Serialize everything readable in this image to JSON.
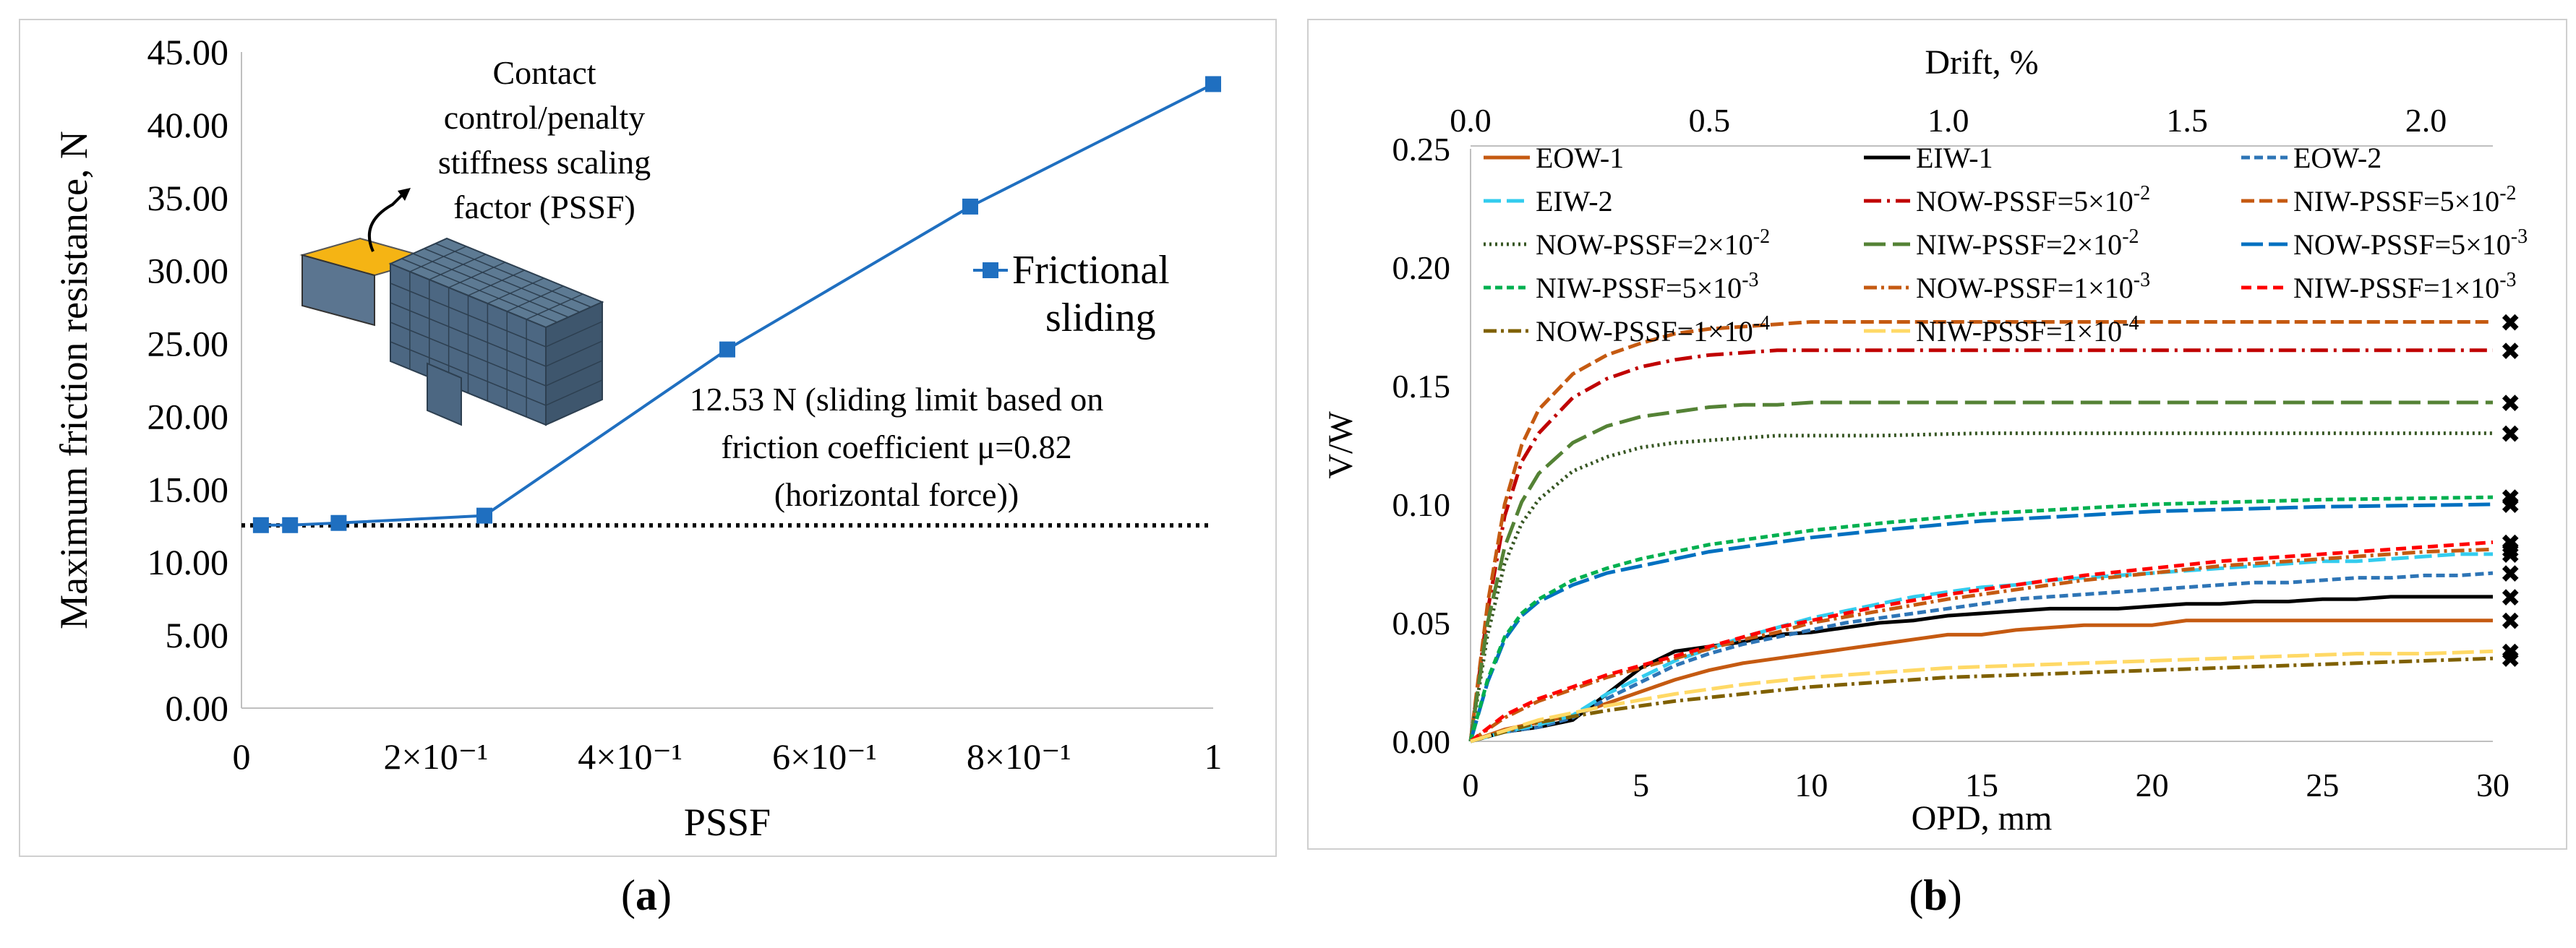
{
  "captions": {
    "a": "a",
    "b": "b"
  },
  "chart_data": [
    {
      "type": "line",
      "panel": "a",
      "xlabel": "PSSF",
      "ylabel": "Maximum friction resistance, N",
      "xlim": [
        0,
        1
      ],
      "ylim": [
        0,
        45
      ],
      "x_ticks": [
        {
          "v": 0,
          "label": "0"
        },
        {
          "v": 0.2,
          "label": "2×10⁻¹"
        },
        {
          "v": 0.4,
          "label": "4×10⁻¹"
        },
        {
          "v": 0.6,
          "label": "6×10⁻¹"
        },
        {
          "v": 0.8,
          "label": "8×10⁻¹"
        },
        {
          "v": 1,
          "label": "1"
        }
      ],
      "y_ticks": [
        {
          "v": 0,
          "label": "0.00"
        },
        {
          "v": 5,
          "label": "5.00"
        },
        {
          "v": 10,
          "label": "10.00"
        },
        {
          "v": 15,
          "label": "15.00"
        },
        {
          "v": 20,
          "label": "20.00"
        },
        {
          "v": 25,
          "label": "25.00"
        },
        {
          "v": 30,
          "label": "30.00"
        },
        {
          "v": 35,
          "label": "35.00"
        },
        {
          "v": 40,
          "label": "40.00"
        },
        {
          "v": 45,
          "label": "45.00"
        }
      ],
      "series": [
        {
          "name": "Frictional sliding",
          "color": "#1f6fc0",
          "x": [
            0.02,
            0.05,
            0.1,
            0.25,
            0.5,
            0.75,
            1.0
          ],
          "y": [
            12.55,
            12.55,
            12.7,
            13.2,
            24.6,
            34.4,
            42.8
          ]
        }
      ],
      "reference_line": {
        "y": 12.53,
        "style": "dotted"
      },
      "legend": {
        "label_line1": "Frictional",
        "label_line2": "sliding",
        "position": "upper-right"
      },
      "annotations": {
        "inset_title": [
          "Contact",
          "control/penalty",
          "stiffness scaling",
          "factor (PSSF)"
        ],
        "sliding_limit": [
          "12.53 N (sliding limit based on",
          "friction coefficient μ=0.82",
          "(horizontal force))"
        ]
      }
    },
    {
      "type": "line",
      "panel": "b",
      "xlabel": "OPD, mm",
      "ylabel": "V/W",
      "x2label": "Drift, %",
      "xlim": [
        0,
        30
      ],
      "ylim": [
        0,
        0.25
      ],
      "x_ticks": [
        "0",
        "5",
        "10",
        "15",
        "20",
        "25",
        "30"
      ],
      "y_ticks": [
        "0.00",
        "0.05",
        "0.10",
        "0.15",
        "0.20",
        "0.25"
      ],
      "x2_ticks": [
        "0.0",
        "0.5",
        "1.0",
        "1.5",
        "2.0"
      ],
      "series": [
        {
          "name": "EOW-1",
          "color": "#c55a11",
          "dash": "",
          "x": [
            0,
            1,
            2,
            3,
            4,
            5,
            6,
            7,
            8,
            9,
            10,
            11,
            12,
            13,
            14,
            15,
            16,
            17,
            18,
            19,
            20,
            21,
            22,
            23,
            24,
            25,
            26,
            27,
            28,
            29,
            30
          ],
          "y": [
            0,
            0.005,
            0.008,
            0.011,
            0.016,
            0.021,
            0.026,
            0.03,
            0.033,
            0.035,
            0.037,
            0.039,
            0.041,
            0.043,
            0.045,
            0.045,
            0.047,
            0.048,
            0.049,
            0.049,
            0.049,
            0.051,
            0.051,
            0.051,
            0.051,
            0.051,
            0.051,
            0.051,
            0.051,
            0.051,
            0.051
          ]
        },
        {
          "name": "EIW-1",
          "color": "#000000",
          "dash": "",
          "x": [
            0,
            1,
            2,
            3,
            4,
            5,
            6,
            7,
            8,
            9,
            10,
            11,
            12,
            13,
            14,
            15,
            16,
            17,
            18,
            19,
            20,
            21,
            22,
            23,
            24,
            25,
            26,
            27,
            28,
            29,
            30
          ],
          "y": [
            0,
            0.004,
            0.006,
            0.009,
            0.02,
            0.031,
            0.038,
            0.04,
            0.042,
            0.045,
            0.046,
            0.048,
            0.05,
            0.051,
            0.053,
            0.054,
            0.055,
            0.056,
            0.056,
            0.056,
            0.057,
            0.058,
            0.058,
            0.059,
            0.059,
            0.06,
            0.06,
            0.061,
            0.061,
            0.061,
            0.061
          ]
        },
        {
          "name": "EOW-2",
          "color": "#2e75b6",
          "dash": "12,6",
          "x": [
            0,
            1,
            2,
            3,
            4,
            5,
            6,
            7,
            8,
            9,
            10,
            11,
            12,
            13,
            14,
            15,
            16,
            17,
            18,
            19,
            20,
            21,
            22,
            23,
            24,
            25,
            26,
            27,
            28,
            29,
            30
          ],
          "y": [
            0,
            0.004,
            0.006,
            0.01,
            0.018,
            0.025,
            0.032,
            0.037,
            0.041,
            0.044,
            0.047,
            0.05,
            0.052,
            0.054,
            0.056,
            0.058,
            0.06,
            0.061,
            0.062,
            0.063,
            0.064,
            0.065,
            0.066,
            0.067,
            0.067,
            0.068,
            0.069,
            0.069,
            0.07,
            0.07,
            0.071
          ]
        },
        {
          "name": "EIW-2",
          "color": "#33ccee",
          "dash": "24,8",
          "x": [
            0,
            1,
            2,
            3,
            4,
            5,
            6,
            7,
            8,
            9,
            10,
            11,
            12,
            13,
            14,
            15,
            16,
            17,
            18,
            19,
            20,
            21,
            22,
            23,
            24,
            25,
            26,
            27,
            28,
            29,
            30
          ],
          "y": [
            0,
            0.004,
            0.007,
            0.011,
            0.02,
            0.027,
            0.034,
            0.039,
            0.044,
            0.048,
            0.052,
            0.055,
            0.058,
            0.061,
            0.063,
            0.065,
            0.066,
            0.068,
            0.069,
            0.07,
            0.071,
            0.072,
            0.073,
            0.074,
            0.075,
            0.076,
            0.076,
            0.077,
            0.078,
            0.079,
            0.079
          ]
        },
        {
          "name": "NOW-PSSF=5×10-2",
          "color": "#c00000",
          "dash": "24,8,4,8",
          "x": [
            0,
            0.5,
            1,
            1.5,
            2,
            3,
            4,
            5,
            6,
            7,
            8,
            9,
            10,
            12,
            15,
            20,
            25,
            30
          ],
          "y": [
            0,
            0.055,
            0.095,
            0.118,
            0.13,
            0.145,
            0.153,
            0.158,
            0.161,
            0.163,
            0.164,
            0.165,
            0.165,
            0.165,
            0.165,
            0.165,
            0.165,
            0.165
          ]
        },
        {
          "name": "NIW-PSSF=5×10-2",
          "color": "#c55a11",
          "dash": "18,7",
          "x": [
            0,
            0.5,
            1,
            1.5,
            2,
            3,
            4,
            5,
            6,
            7,
            8,
            9,
            10,
            12,
            15,
            20,
            25,
            30
          ],
          "y": [
            0,
            0.058,
            0.1,
            0.125,
            0.14,
            0.155,
            0.163,
            0.168,
            0.172,
            0.174,
            0.175,
            0.176,
            0.177,
            0.177,
            0.177,
            0.177,
            0.177,
            0.177
          ]
        },
        {
          "name": "NOW-PSSF=2×10-2",
          "color": "#375623",
          "dash": "3,5",
          "x": [
            0,
            0.5,
            1,
            1.5,
            2,
            3,
            4,
            5,
            6,
            7,
            8,
            9,
            10,
            12,
            15,
            20,
            25,
            30
          ],
          "y": [
            0,
            0.045,
            0.075,
            0.092,
            0.102,
            0.114,
            0.12,
            0.124,
            0.126,
            0.127,
            0.128,
            0.129,
            0.129,
            0.129,
            0.13,
            0.13,
            0.13,
            0.13
          ]
        },
        {
          "name": "NIW-PSSF=2×10-2",
          "color": "#548235",
          "dash": "30,10",
          "x": [
            0,
            0.5,
            1,
            1.5,
            2,
            3,
            4,
            5,
            6,
            7,
            8,
            9,
            10,
            12,
            15,
            20,
            25,
            30
          ],
          "y": [
            0,
            0.05,
            0.082,
            0.101,
            0.113,
            0.126,
            0.133,
            0.137,
            0.139,
            0.141,
            0.142,
            0.142,
            0.143,
            0.143,
            0.143,
            0.143,
            0.143,
            0.143
          ]
        },
        {
          "name": "NOW-PSSF=5×10-3",
          "color": "#0070c0",
          "dash": "30,8",
          "x": [
            0,
            0.5,
            1,
            1.5,
            2,
            3,
            4,
            5,
            6,
            7,
            8,
            9,
            10,
            12,
            15,
            20,
            25,
            30
          ],
          "y": [
            0,
            0.025,
            0.043,
            0.053,
            0.059,
            0.066,
            0.071,
            0.074,
            0.077,
            0.08,
            0.082,
            0.084,
            0.086,
            0.089,
            0.093,
            0.097,
            0.099,
            0.1
          ]
        },
        {
          "name": "NIW-PSSF=5×10-3",
          "color": "#00b050",
          "dash": "10,6",
          "x": [
            0,
            0.5,
            1,
            1.5,
            2,
            3,
            4,
            5,
            6,
            7,
            8,
            9,
            10,
            12,
            15,
            20,
            25,
            30
          ],
          "y": [
            0,
            0.026,
            0.044,
            0.054,
            0.06,
            0.068,
            0.073,
            0.077,
            0.08,
            0.083,
            0.085,
            0.087,
            0.089,
            0.092,
            0.096,
            0.1,
            0.102,
            0.103
          ]
        },
        {
          "name": "NOW-PSSF=1×10-3",
          "color": "#c55a11",
          "dash": "18,6,4,6",
          "x": [
            0,
            1,
            2,
            3,
            4,
            5,
            6,
            7,
            8,
            9,
            10,
            12,
            14,
            16,
            18,
            20,
            22,
            24,
            26,
            28,
            30
          ],
          "y": [
            0,
            0.01,
            0.017,
            0.022,
            0.027,
            0.031,
            0.035,
            0.039,
            0.043,
            0.046,
            0.05,
            0.055,
            0.06,
            0.064,
            0.068,
            0.071,
            0.074,
            0.076,
            0.078,
            0.08,
            0.081
          ]
        },
        {
          "name": "NIW-PSSF=1×10-3",
          "color": "#ff0000",
          "dash": "14,8",
          "x": [
            0,
            1,
            2,
            3,
            4,
            5,
            6,
            7,
            8,
            9,
            10,
            12,
            14,
            16,
            18,
            20,
            22,
            24,
            26,
            28,
            30
          ],
          "y": [
            0,
            0.011,
            0.018,
            0.023,
            0.028,
            0.032,
            0.036,
            0.04,
            0.044,
            0.048,
            0.051,
            0.057,
            0.062,
            0.066,
            0.07,
            0.073,
            0.076,
            0.078,
            0.08,
            0.082,
            0.084
          ]
        },
        {
          "name": "NOW-PSSF=1×10-4",
          "color": "#7f6000",
          "dash": "18,6,4,6",
          "x": [
            0,
            2,
            4,
            6,
            8,
            10,
            12,
            14,
            16,
            18,
            20,
            22,
            24,
            26,
            28,
            30
          ],
          "y": [
            0,
            0.008,
            0.013,
            0.017,
            0.02,
            0.023,
            0.025,
            0.027,
            0.028,
            0.029,
            0.03,
            0.031,
            0.032,
            0.033,
            0.034,
            0.035
          ]
        },
        {
          "name": "NIW-PSSF=1×10-4",
          "color": "#ffd966",
          "dash": "30,8",
          "x": [
            0,
            2,
            4,
            6,
            8,
            10,
            12,
            14,
            16,
            18,
            20,
            22,
            24,
            26,
            28,
            30
          ],
          "y": [
            0,
            0.009,
            0.015,
            0.02,
            0.024,
            0.027,
            0.029,
            0.031,
            0.032,
            0.033,
            0.034,
            0.035,
            0.036,
            0.037,
            0.037,
            0.038
          ]
        }
      ],
      "legend": {
        "position": "top",
        "entries": [
          {
            "base": "EOW-1",
            "exp": ""
          },
          {
            "base": "EIW-1",
            "exp": ""
          },
          {
            "base": "EOW-2",
            "exp": ""
          },
          {
            "base": "EIW-2",
            "exp": ""
          },
          {
            "base": "NOW-PSSF=5×10",
            "exp": "-2"
          },
          {
            "base": "NIW-PSSF=5×10",
            "exp": "-2"
          },
          {
            "base": "NOW-PSSF=2×10",
            "exp": "-2"
          },
          {
            "base": "NIW-PSSF=2×10",
            "exp": "-2"
          },
          {
            "base": "NOW-PSSF=5×10",
            "exp": "-3"
          },
          {
            "base": "NIW-PSSF=5×10",
            "exp": "-3"
          },
          {
            "base": "NOW-PSSF=1×10",
            "exp": "-3"
          },
          {
            "base": "NIW-PSSF=1×10",
            "exp": "-3"
          },
          {
            "base": "NOW-PSSF=1×10",
            "exp": "-4"
          },
          {
            "base": "NIW-PSSF=1×10",
            "exp": "-4"
          }
        ]
      },
      "end_markers": {
        "symbol": "✖",
        "x": 30,
        "y": [
          0.177,
          0.165,
          0.143,
          0.13,
          0.103,
          0.1,
          0.084,
          0.081,
          0.079,
          0.071,
          0.061,
          0.051,
          0.038,
          0.035
        ]
      }
    }
  ]
}
